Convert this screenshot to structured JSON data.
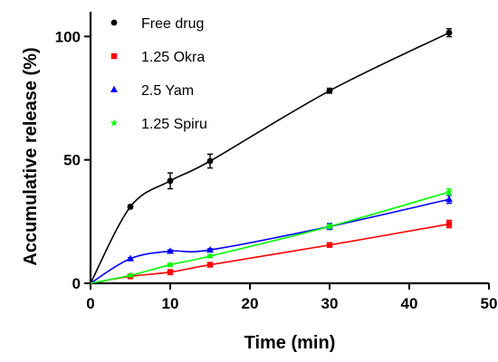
{
  "chart_data": {
    "type": "line",
    "title": "",
    "xlabel": "Time (min)",
    "ylabel": "Accumulative release (%)",
    "xlim": [
      0,
      50
    ],
    "ylim": [
      0,
      110
    ],
    "xticks": [
      0,
      10,
      20,
      30,
      40,
      50
    ],
    "yticks": [
      0,
      50,
      100
    ],
    "grid": false,
    "legend_position": "top-left",
    "series": [
      {
        "name": "Free drug",
        "color": "#000000",
        "marker": "circle",
        "x": [
          0,
          5,
          10,
          15,
          30,
          45
        ],
        "y": [
          0,
          31,
          41.5,
          49.5,
          78,
          101.5
        ],
        "err": [
          0,
          0.6,
          3.2,
          2.8,
          1.0,
          1.6
        ]
      },
      {
        "name": "1.25 Okra",
        "color": "#ff0000",
        "marker": "square",
        "x": [
          0,
          5,
          10,
          15,
          30,
          45
        ],
        "y": [
          0,
          2.8,
          4.5,
          7.5,
          15.5,
          24
        ],
        "err": [
          0,
          0.5,
          1.0,
          0.5,
          0.5,
          1.5
        ]
      },
      {
        "name": "2.5 Yam",
        "color": "#0000ff",
        "marker": "triangle",
        "x": [
          0,
          5,
          10,
          15,
          30,
          45
        ],
        "y": [
          0,
          10,
          13,
          13.5,
          23,
          34
        ],
        "err": [
          0,
          0.4,
          0.5,
          0.5,
          1.2,
          1.6
        ]
      },
      {
        "name": "1.25 Spiru",
        "color": "#00ff00",
        "marker": "star",
        "x": [
          0,
          5,
          10,
          15,
          30,
          45
        ],
        "y": [
          0,
          3.2,
          7.5,
          11,
          23,
          37
        ],
        "err": [
          0,
          0.3,
          0.5,
          0.5,
          0.8,
          1.2
        ]
      }
    ]
  }
}
